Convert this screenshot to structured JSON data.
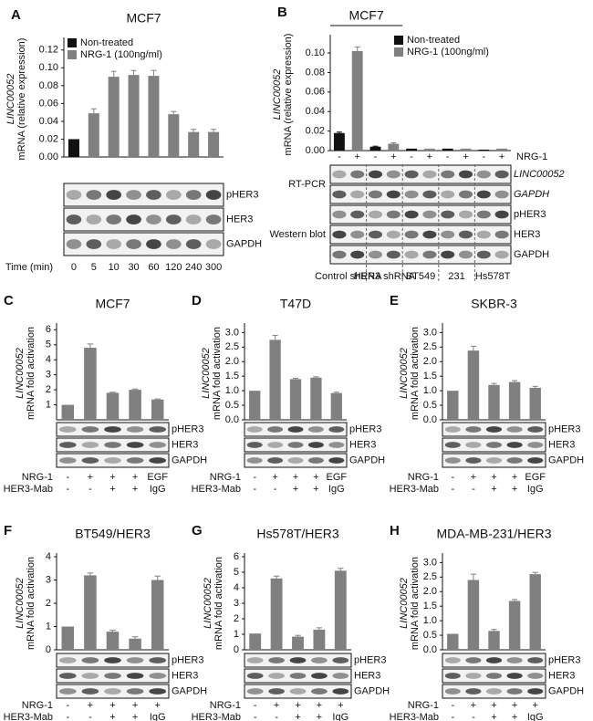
{
  "chart_data": [
    {
      "type": "bar",
      "panel": "A",
      "title": "MCF7",
      "y_label": [
        "LINC00052",
        "mRNA (relative expression)"
      ],
      "categories": [
        "0",
        "5",
        "10",
        "30",
        "60",
        "120",
        "240",
        "300"
      ],
      "x_label": "Time (min)",
      "series": [
        {
          "name": "Non-treated",
          "color": "#111111",
          "values": [
            0.02,
            null,
            null,
            null,
            null,
            null,
            null,
            null
          ],
          "errors": [
            null,
            null,
            null,
            null,
            null,
            null,
            null,
            null
          ]
        },
        {
          "name": "NRG-1 (100ng/ml)",
          "color": "#808080",
          "values": [
            null,
            0.049,
            0.09,
            0.092,
            0.091,
            0.048,
            0.028,
            0.028
          ],
          "errors": [
            null,
            0.005,
            0.006,
            0.005,
            0.006,
            0.003,
            0.003,
            0.003
          ]
        }
      ],
      "ylim": [
        0,
        0.13
      ],
      "yticks": [
        {
          "value": 0,
          "label": "0.00"
        },
        {
          "value": 0.02,
          "label": "0.02"
        },
        {
          "value": 0.04,
          "label": "0.04"
        },
        {
          "value": 0.06,
          "label": "0.06"
        },
        {
          "value": 0.08,
          "label": "0.08"
        },
        {
          "value": 0.1,
          "label": "0.10"
        },
        {
          "value": 0.12,
          "label": "0.12"
        }
      ],
      "blot_labels": [
        "pHER3",
        "HER3",
        "GAPDH"
      ]
    },
    {
      "type": "bar",
      "panel": "B",
      "title": "MCF7",
      "y_label": [
        "LINC00052",
        "mRNA (relative expression)"
      ],
      "categories": [
        "Control shRNA",
        "HER3 shRNA",
        "BT549",
        "231",
        "Hs578T"
      ],
      "series": [
        {
          "name": "Non-treated",
          "color": "#111111",
          "values": [
            0.018,
            0.004,
            0.002,
            0.002,
            0.001
          ],
          "errors": [
            0.001,
            0.0005,
            null,
            null,
            null
          ]
        },
        {
          "name": "NRG-1 (100ng/ml)",
          "color": "#808080",
          "values": [
            0.102,
            0.007,
            0.002,
            0.002,
            0.002
          ],
          "errors": [
            0.004,
            0.001,
            null,
            null,
            null
          ]
        }
      ],
      "ylim": [
        0,
        0.115
      ],
      "yticks": [
        {
          "value": 0,
          "label": "0.00"
        },
        {
          "value": 0.02,
          "label": "0.02"
        },
        {
          "value": 0.04,
          "label": "0.04"
        },
        {
          "value": 0.06,
          "label": "0.06"
        },
        {
          "value": 0.08,
          "label": "0.08"
        },
        {
          "value": 0.1,
          "label": "0.10"
        }
      ],
      "treatments": [
        {
          "label": "NRG-1",
          "marks": [
            "-",
            "+",
            "-",
            "+",
            "-",
            "+",
            "-",
            "+",
            "-",
            "+"
          ]
        }
      ],
      "sections": [
        "RT-PCR",
        "Western blot"
      ],
      "blot_labels": [
        "LINC00052",
        "GAPDH",
        "pHER3",
        "HER3",
        "GAPDH"
      ]
    },
    {
      "type": "bar",
      "panel": "C",
      "title": "MCF7",
      "y_label": [
        "LINC00052",
        "mRNA fold activation"
      ],
      "color": "#808080",
      "categories": [
        null,
        null,
        null,
        null,
        null
      ],
      "values": [
        1.0,
        4.8,
        1.8,
        2.0,
        1.35
      ],
      "errors": [
        null,
        0.25,
        0.04,
        0.05,
        0.04
      ],
      "ylim": [
        0,
        6.2
      ],
      "yticks": [
        1,
        2,
        3,
        4,
        5,
        6
      ],
      "blot_labels": [
        "pHER3",
        "HER3",
        "GAPDH"
      ],
      "treatments": [
        {
          "label": "NRG-1",
          "marks": [
            "-",
            "+",
            "+",
            "+",
            "EGF"
          ]
        },
        {
          "label": "HER3-Mab",
          "marks": [
            "-",
            "-",
            "+",
            "+",
            "IgG"
          ]
        }
      ]
    },
    {
      "type": "bar",
      "panel": "D",
      "title": "T47D",
      "y_label": [
        "LINC00052",
        "mRNA fold activation"
      ],
      "color": "#808080",
      "categories": [
        null,
        null,
        null,
        null,
        null
      ],
      "values": [
        1.0,
        2.75,
        1.4,
        1.45,
        0.92
      ],
      "errors": [
        null,
        0.15,
        0.03,
        0.03,
        0.03
      ],
      "ylim": [
        0,
        3.2
      ],
      "yticks": [
        {
          "value": 0,
          "label": "0.0"
        },
        {
          "value": 0.5,
          "label": "0.5"
        },
        {
          "value": 1,
          "label": "1.0"
        },
        {
          "value": 1.5,
          "label": "1.5"
        },
        {
          "value": 2,
          "label": "2.0"
        },
        {
          "value": 2.5,
          "label": "2.5"
        },
        {
          "value": 3,
          "label": "3.0"
        }
      ],
      "blot_labels": [
        "pHER3",
        "HER3",
        "GAPDH"
      ],
      "treatments": [
        {
          "label": "NRG-1",
          "marks": [
            "-",
            "+",
            "+",
            "+",
            "EGF"
          ]
        },
        {
          "label": "HER3-Mab",
          "marks": [
            "-",
            "-",
            "+",
            "+",
            "IgG"
          ]
        }
      ]
    },
    {
      "type": "bar",
      "panel": "E",
      "title": "SKBR-3",
      "y_label": [
        "LINC00052",
        "mRNA fold activation"
      ],
      "color": "#808080",
      "categories": [
        null,
        null,
        null,
        null,
        null
      ],
      "values": [
        1.0,
        2.38,
        1.2,
        1.3,
        1.1
      ],
      "errors": [
        null,
        0.15,
        0.05,
        0.05,
        0.05
      ],
      "ylim": [
        0,
        3.2
      ],
      "yticks": [
        {
          "value": 0,
          "label": "0.0"
        },
        {
          "value": 0.5,
          "label": "0.5"
        },
        {
          "value": 1,
          "label": "1.0"
        },
        {
          "value": 1.5,
          "label": "1.5"
        },
        {
          "value": 2,
          "label": "2.0"
        },
        {
          "value": 2.5,
          "label": "2.5"
        },
        {
          "value": 3,
          "label": "3.0"
        }
      ],
      "blot_labels": [
        "pHER3",
        "HER3",
        "GAPDH"
      ],
      "treatments": [
        {
          "label": "NRG-1",
          "marks": [
            "-",
            "+",
            "+",
            "+",
            "EGF"
          ]
        },
        {
          "label": "HER3-Mab",
          "marks": [
            "-",
            "-",
            "+",
            "+",
            "IgG"
          ]
        }
      ]
    },
    {
      "type": "bar",
      "panel": "F",
      "title": "BT549/HER3",
      "y_label": [
        "LINC00052",
        "mRNA fold activation"
      ],
      "color": "#808080",
      "categories": [
        null,
        null,
        null,
        null,
        null
      ],
      "values": [
        1.0,
        3.2,
        0.78,
        0.48,
        3.0
      ],
      "errors": [
        null,
        0.1,
        0.06,
        0.08,
        0.17
      ],
      "ylim": [
        0,
        4
      ],
      "yticks": [
        0,
        1,
        2,
        3,
        4
      ],
      "blot_labels": [
        "pHER3",
        "HER3",
        "GAPDH"
      ],
      "treatments": [
        {
          "label": "NRG-1",
          "marks": [
            "-",
            "+",
            "+",
            "+",
            "+"
          ]
        },
        {
          "label": "HER3-Mab",
          "marks": [
            "-",
            "-",
            "+",
            "+",
            "IgG"
          ]
        }
      ]
    },
    {
      "type": "bar",
      "panel": "G",
      "title": "Hs578T/HER3",
      "y_label": [
        "LINC00052",
        "mRNA fold activation"
      ],
      "color": "#808080",
      "categories": [
        null,
        null,
        null,
        null,
        null
      ],
      "values": [
        1.05,
        4.6,
        0.85,
        1.3,
        5.1
      ],
      "errors": [
        null,
        0.15,
        0.08,
        0.12,
        0.15
      ],
      "ylim": [
        0,
        6
      ],
      "yticks": [
        0,
        1,
        2,
        3,
        4,
        5,
        6
      ],
      "blot_labels": [
        "pHER3",
        "HER3",
        "GAPDH"
      ],
      "treatments": [
        {
          "label": "NRG-1",
          "marks": [
            "-",
            "+",
            "+",
            "+",
            "+"
          ]
        },
        {
          "label": "HER3-Mab",
          "marks": [
            "-",
            "-",
            "+",
            "+",
            "IgG"
          ]
        }
      ]
    },
    {
      "type": "bar",
      "panel": "H",
      "title": "MDA-MB-231/HER3",
      "y_label": [
        "LINC00052",
        "mRNA fold activation"
      ],
      "color": "#808080",
      "categories": [
        null,
        null,
        null,
        null,
        null
      ],
      "values": [
        0.55,
        2.4,
        0.65,
        1.68,
        2.6
      ],
      "errors": [
        null,
        0.2,
        0.05,
        0.05,
        0.06
      ],
      "ylim": [
        0,
        3.2
      ],
      "yticks": [
        {
          "value": 0,
          "label": "0.0"
        },
        {
          "value": 0.5,
          "label": "0.5"
        },
        {
          "value": 1,
          "label": "1.0"
        },
        {
          "value": 1.5,
          "label": "1.5"
        },
        {
          "value": 2,
          "label": "2.0"
        },
        {
          "value": 2.5,
          "label": "2.5"
        },
        {
          "value": 3,
          "label": "3.0"
        }
      ],
      "blot_labels": [
        "pHER3",
        "HER3",
        "GAPDH"
      ],
      "treatments": [
        {
          "label": "NRG-1",
          "marks": [
            "-",
            "+",
            "+",
            "+",
            "+"
          ]
        },
        {
          "label": "HER3-Mab",
          "marks": [
            "-",
            "-",
            "+",
            "+",
            "IgG"
          ]
        }
      ]
    }
  ]
}
